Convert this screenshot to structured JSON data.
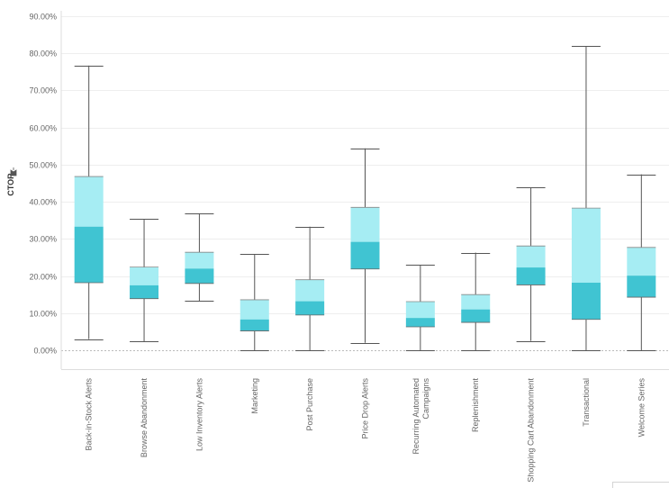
{
  "chart_data": {
    "type": "boxplot",
    "ylabel": "CTOR",
    "ylim": [
      0,
      90
    ],
    "y_ticks": [
      "0.00%",
      "10.00%",
      "20.00%",
      "30.00%",
      "40.00%",
      "50.00%",
      "60.00%",
      "70.00%",
      "80.00%",
      "90.00%"
    ],
    "y_tick_values": [
      0,
      10,
      20,
      30,
      40,
      50,
      60,
      70,
      80,
      90
    ],
    "grid": true,
    "colors": {
      "upper_box": "#a6edf3",
      "lower_box": "#40c4d2",
      "whisker": "#555555",
      "grid": "#eeeeee",
      "zero_line": "#bbbbbb"
    },
    "categories": [
      "Back-in-Stock Alerts",
      "Browse Abandonment",
      "Low Inventory Alerts",
      "Marketing",
      "Post Purchase",
      "Price Drop Alerts",
      "Recurring Automated Campaigns",
      "Replenishment",
      "Shopping Cart Abandonment",
      "Transactional",
      "Welcome Series"
    ],
    "category_lines": [
      [
        "Back-in-Stock Alerts"
      ],
      [
        "Browse Abandonment"
      ],
      [
        "Low Inventory Alerts"
      ],
      [
        "Marketing"
      ],
      [
        "Post Purchase"
      ],
      [
        "Price Drop Alerts"
      ],
      [
        "Recurring Automated",
        "Campaigns"
      ],
      [
        "Replenishment"
      ],
      [
        "Shopping Cart Abandonment"
      ],
      [
        "Transactional"
      ],
      [
        "Welcome Series"
      ]
    ],
    "boxes": [
      {
        "min": 3.0,
        "q1": 18.2,
        "median": 33.3,
        "q3": 46.8,
        "max": 76.7
      },
      {
        "min": 2.4,
        "q1": 13.9,
        "median": 17.5,
        "q3": 22.4,
        "max": 35.3
      },
      {
        "min": 13.3,
        "q1": 18.0,
        "median": 22.0,
        "q3": 26.4,
        "max": 36.9
      },
      {
        "min": 0.0,
        "q1": 5.2,
        "median": 8.3,
        "q3": 13.6,
        "max": 25.9
      },
      {
        "min": 0.0,
        "q1": 9.5,
        "median": 13.2,
        "q3": 19.0,
        "max": 33.3
      },
      {
        "min": 2.0,
        "q1": 21.9,
        "median": 29.2,
        "q3": 38.5,
        "max": 54.4
      },
      {
        "min": 0.0,
        "q1": 6.3,
        "median": 8.7,
        "q3": 13.1,
        "max": 23.0
      },
      {
        "min": 0.0,
        "q1": 7.5,
        "median": 11.0,
        "q3": 15.0,
        "max": 26.3
      },
      {
        "min": 2.5,
        "q1": 17.6,
        "median": 22.3,
        "q3": 28.1,
        "max": 43.9
      },
      {
        "min": 0.0,
        "q1": 8.3,
        "median": 18.2,
        "q3": 38.3,
        "max": 82.0
      },
      {
        "min": 0.0,
        "q1": 14.3,
        "median": 20.1,
        "q3": 27.7,
        "max": 47.4
      }
    ]
  }
}
